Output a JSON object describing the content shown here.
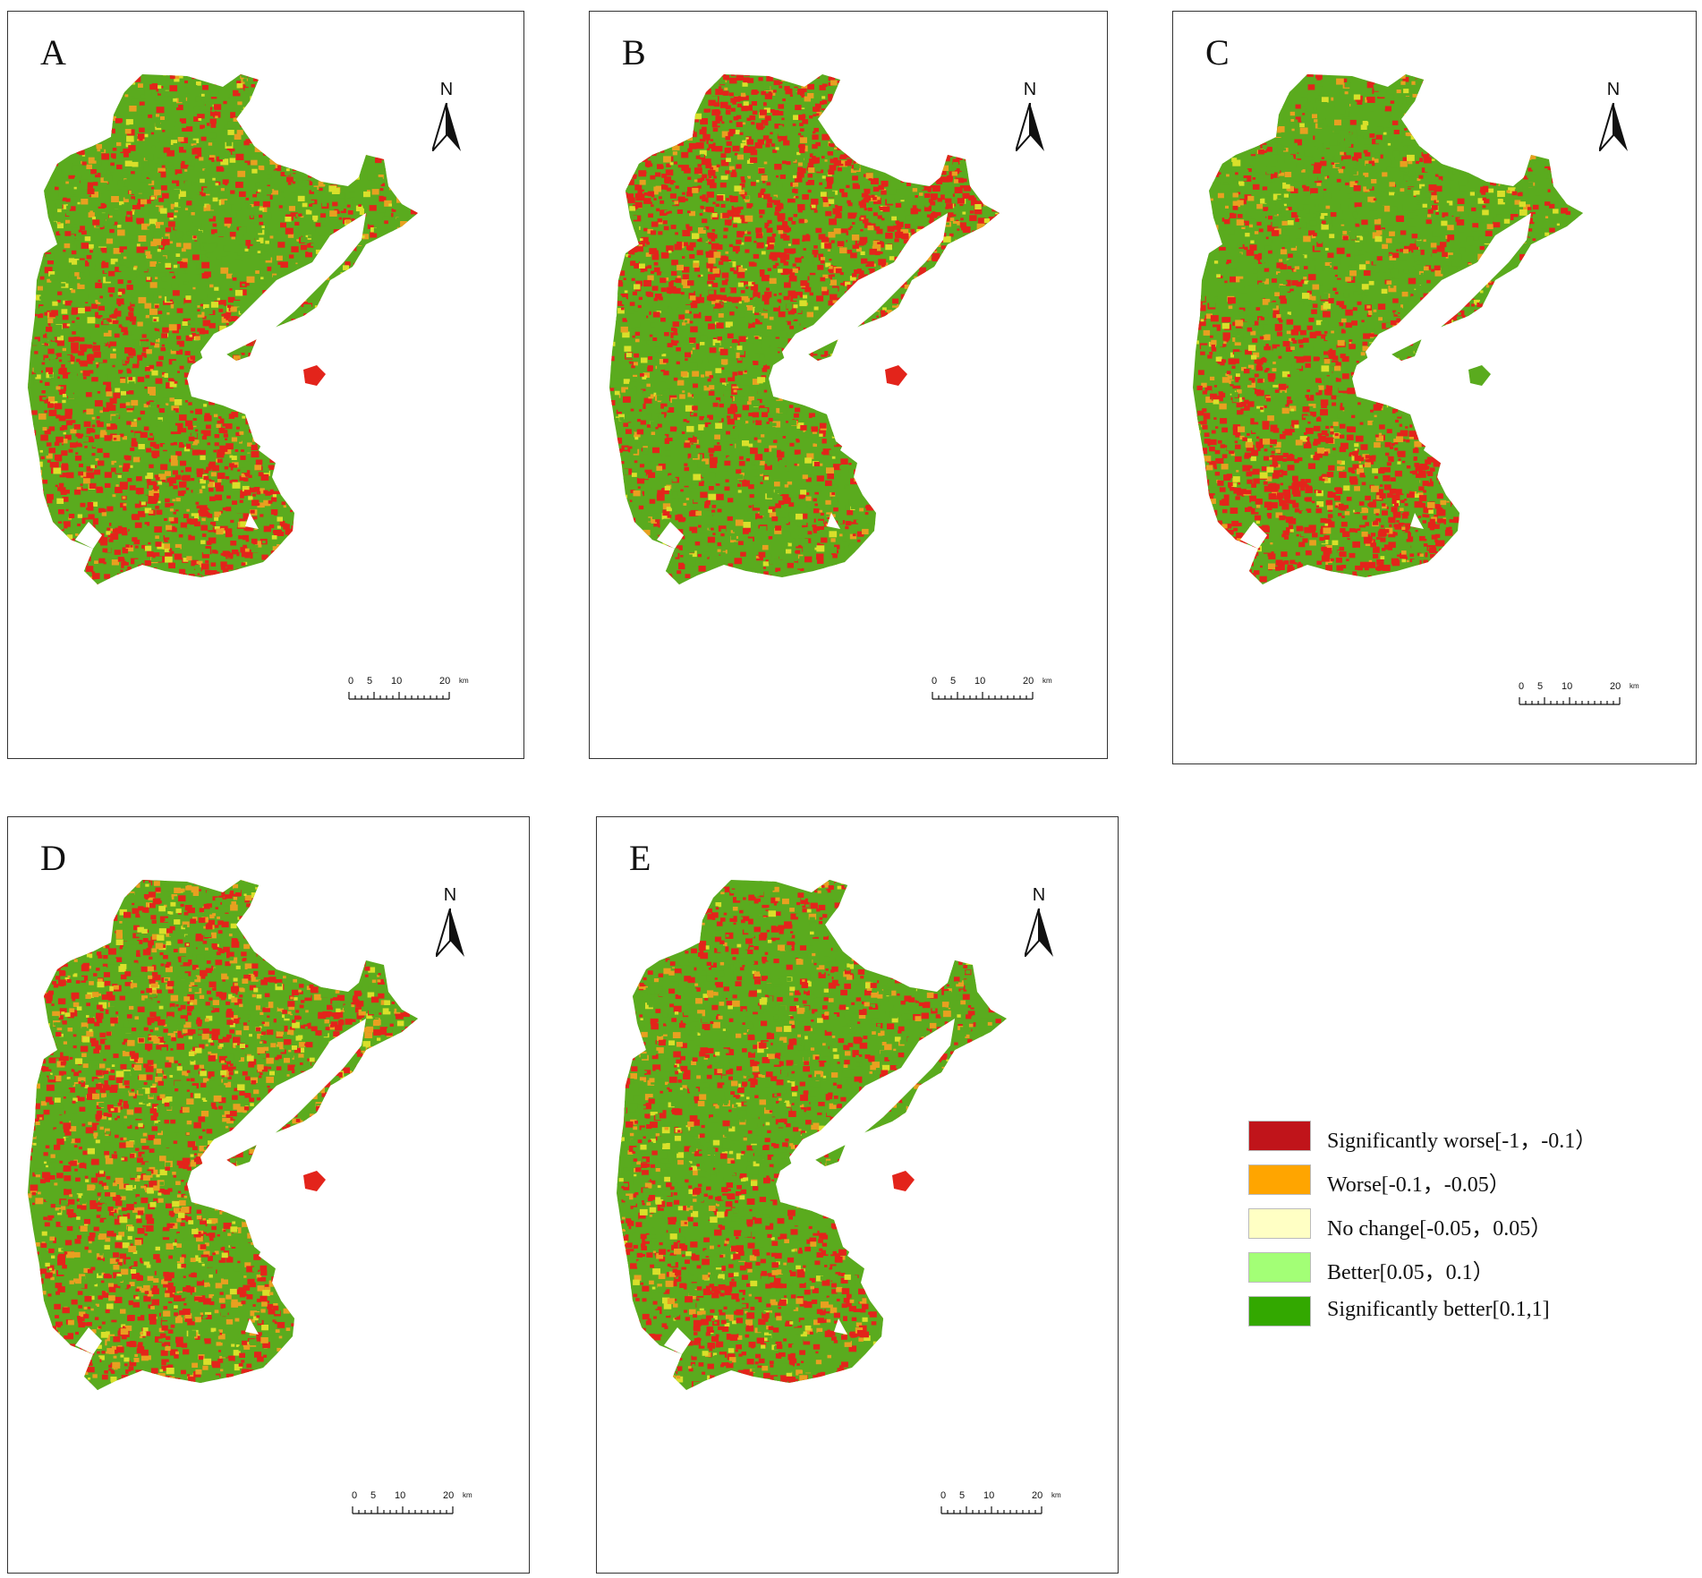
{
  "panels": [
    {
      "label": "A",
      "scale_unit": "km",
      "north": "N",
      "dominant": "mixed"
    },
    {
      "label": "B",
      "scale_unit": "km",
      "north": "N",
      "dominant": "red-north"
    },
    {
      "label": "C",
      "scale_unit": "km",
      "north": "N",
      "dominant": "red-south"
    },
    {
      "label": "D",
      "scale_unit": "km",
      "north": "N",
      "dominant": "orange-mix"
    },
    {
      "label": "E",
      "scale_unit": "km",
      "north": "N",
      "dominant": "green-mix"
    }
  ],
  "scale_ticks": [
    "0",
    "5",
    "10",
    "20"
  ],
  "legend": [
    {
      "label": "Significantly worse[-1，-0.1）",
      "color": "#c0141a"
    },
    {
      "label": "Worse[-0.1，-0.05）",
      "color": "#ffa500"
    },
    {
      "label": "No change[-0.05，0.05）",
      "color": "#ffffc4"
    },
    {
      "label": "Better[0.05，0.1）",
      "color": "#a3ff76"
    },
    {
      "label": "Significantly better[0.1,1]",
      "color": "#33a800"
    }
  ],
  "colors": {
    "red": "#e3241b",
    "orange": "#e8a020",
    "yellow": "#d9e02a",
    "green": "#5aab1e",
    "bright_green": "#3fa814"
  },
  "icons": [
    "north-arrow-icon"
  ]
}
